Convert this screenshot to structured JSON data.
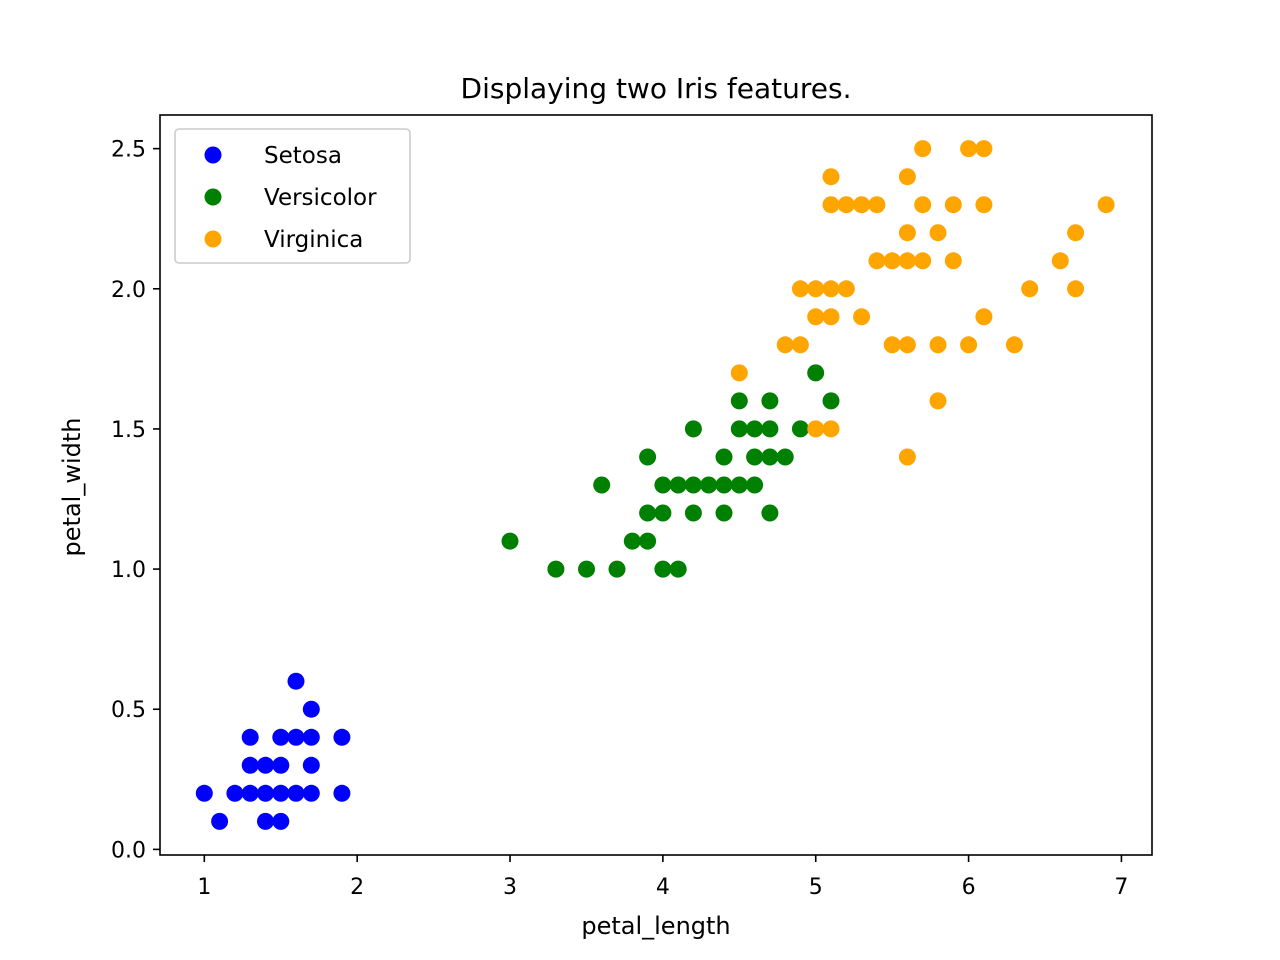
{
  "chart_data": {
    "type": "scatter",
    "title": "Displaying two Iris features.",
    "xlabel": "petal_length",
    "ylabel": "petal_width",
    "xlim": [
      0.71,
      7.2
    ],
    "ylim": [
      -0.02,
      2.62
    ],
    "xticks": [
      1,
      2,
      3,
      4,
      5,
      6,
      7
    ],
    "xtick_labels": [
      "1",
      "2",
      "3",
      "4",
      "5",
      "6",
      "7"
    ],
    "yticks": [
      0.0,
      0.5,
      1.0,
      1.5,
      2.0,
      2.5
    ],
    "ytick_labels": [
      "0.0",
      "0.5",
      "1.0",
      "1.5",
      "2.0",
      "2.5"
    ],
    "grid": false,
    "legend_position": "top-left",
    "series": [
      {
        "name": "Setosa",
        "color": "#0000ff",
        "points": [
          [
            1.0,
            0.2
          ],
          [
            1.1,
            0.1
          ],
          [
            1.2,
            0.2
          ],
          [
            1.3,
            0.2
          ],
          [
            1.3,
            0.3
          ],
          [
            1.3,
            0.4
          ],
          [
            1.4,
            0.1
          ],
          [
            1.4,
            0.2
          ],
          [
            1.4,
            0.3
          ],
          [
            1.5,
            0.1
          ],
          [
            1.5,
            0.2
          ],
          [
            1.5,
            0.3
          ],
          [
            1.5,
            0.4
          ],
          [
            1.6,
            0.2
          ],
          [
            1.6,
            0.4
          ],
          [
            1.6,
            0.6
          ],
          [
            1.7,
            0.2
          ],
          [
            1.7,
            0.3
          ],
          [
            1.7,
            0.4
          ],
          [
            1.7,
            0.5
          ],
          [
            1.9,
            0.2
          ],
          [
            1.9,
            0.4
          ]
        ]
      },
      {
        "name": "Versicolor",
        "color": "#008000",
        "points": [
          [
            3.0,
            1.1
          ],
          [
            3.3,
            1.0
          ],
          [
            3.5,
            1.0
          ],
          [
            3.6,
            1.3
          ],
          [
            3.7,
            1.0
          ],
          [
            3.8,
            1.1
          ],
          [
            3.9,
            1.1
          ],
          [
            3.9,
            1.2
          ],
          [
            3.9,
            1.4
          ],
          [
            4.0,
            1.0
          ],
          [
            4.0,
            1.2
          ],
          [
            4.0,
            1.3
          ],
          [
            4.1,
            1.0
          ],
          [
            4.1,
            1.3
          ],
          [
            4.2,
            1.2
          ],
          [
            4.2,
            1.3
          ],
          [
            4.2,
            1.5
          ],
          [
            4.3,
            1.3
          ],
          [
            4.4,
            1.2
          ],
          [
            4.4,
            1.3
          ],
          [
            4.4,
            1.4
          ],
          [
            4.5,
            1.3
          ],
          [
            4.5,
            1.5
          ],
          [
            4.5,
            1.6
          ],
          [
            4.6,
            1.3
          ],
          [
            4.6,
            1.4
          ],
          [
            4.6,
            1.5
          ],
          [
            4.7,
            1.2
          ],
          [
            4.7,
            1.4
          ],
          [
            4.7,
            1.5
          ],
          [
            4.7,
            1.6
          ],
          [
            4.8,
            1.4
          ],
          [
            4.9,
            1.5
          ],
          [
            5.0,
            1.7
          ],
          [
            5.1,
            1.6
          ]
        ]
      },
      {
        "name": "Virginica",
        "color": "#ffa500",
        "points": [
          [
            4.5,
            1.7
          ],
          [
            4.8,
            1.8
          ],
          [
            4.9,
            1.8
          ],
          [
            4.9,
            2.0
          ],
          [
            5.0,
            1.5
          ],
          [
            5.0,
            1.9
          ],
          [
            5.0,
            2.0
          ],
          [
            5.1,
            1.5
          ],
          [
            5.1,
            1.9
          ],
          [
            5.1,
            2.0
          ],
          [
            5.1,
            2.3
          ],
          [
            5.1,
            2.4
          ],
          [
            5.2,
            2.0
          ],
          [
            5.2,
            2.3
          ],
          [
            5.3,
            1.9
          ],
          [
            5.3,
            2.3
          ],
          [
            5.4,
            2.1
          ],
          [
            5.4,
            2.3
          ],
          [
            5.5,
            1.8
          ],
          [
            5.5,
            2.1
          ],
          [
            5.6,
            1.4
          ],
          [
            5.6,
            1.8
          ],
          [
            5.6,
            2.1
          ],
          [
            5.6,
            2.2
          ],
          [
            5.6,
            2.4
          ],
          [
            5.7,
            2.1
          ],
          [
            5.7,
            2.3
          ],
          [
            5.7,
            2.5
          ],
          [
            5.8,
            1.6
          ],
          [
            5.8,
            1.8
          ],
          [
            5.8,
            2.2
          ],
          [
            5.9,
            2.1
          ],
          [
            5.9,
            2.3
          ],
          [
            6.0,
            1.8
          ],
          [
            6.0,
            2.5
          ],
          [
            6.1,
            1.9
          ],
          [
            6.1,
            2.3
          ],
          [
            6.1,
            2.5
          ],
          [
            6.3,
            1.8
          ],
          [
            6.4,
            2.0
          ],
          [
            6.6,
            2.1
          ],
          [
            6.7,
            2.0
          ],
          [
            6.7,
            2.2
          ],
          [
            6.9,
            2.3
          ]
        ]
      }
    ]
  }
}
